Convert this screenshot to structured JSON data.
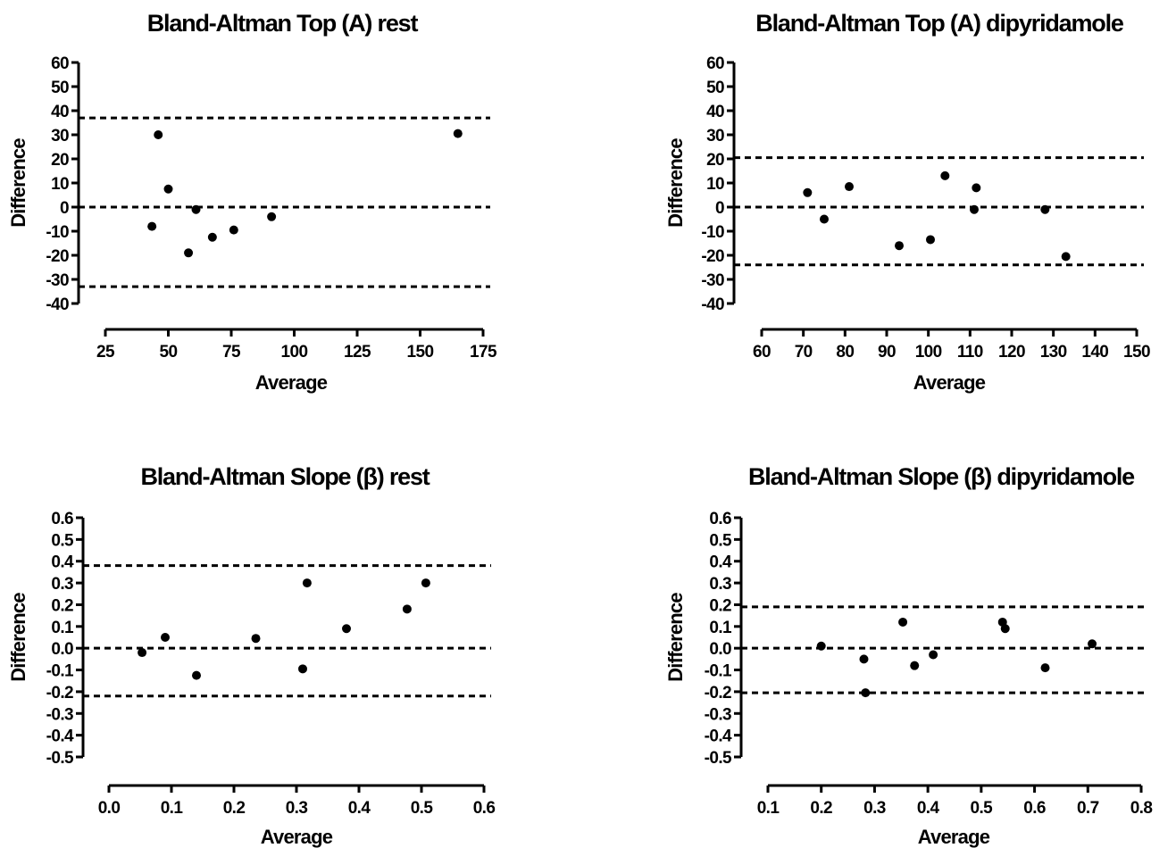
{
  "chart_data": [
    {
      "type": "scatter",
      "title": "Bland-Altman Top (A) rest",
      "xlabel": "Average",
      "ylabel": "Difference",
      "xlim": [
        25,
        175
      ],
      "ylim": [
        -40,
        60
      ],
      "xticks": [
        25,
        50,
        75,
        100,
        125,
        150,
        175
      ],
      "yticks": [
        60,
        50,
        40,
        30,
        20,
        10,
        0,
        -10,
        -20,
        -30,
        -40
      ],
      "xtick_labels": [
        "25",
        "50",
        "75",
        "100",
        "125",
        "150",
        "175"
      ],
      "ytick_labels": [
        "60",
        "50",
        "40",
        "30",
        "20",
        "10",
        "0",
        "-10",
        "-20",
        "-30",
        "-40"
      ],
      "reference_lines": [
        37,
        0,
        -33
      ],
      "points": [
        [
          43.5,
          -8
        ],
        [
          46,
          30
        ],
        [
          50,
          7.5
        ],
        [
          58,
          -19
        ],
        [
          61,
          -1
        ],
        [
          67.5,
          -12.5
        ],
        [
          76,
          -9.5
        ],
        [
          91,
          -4
        ],
        [
          165,
          30.5
        ]
      ]
    },
    {
      "type": "scatter",
      "title": "Bland-Altman Top (A) dipyridamole",
      "xlabel": "Average",
      "ylabel": "Difference",
      "xlim": [
        60,
        150
      ],
      "ylim": [
        -40,
        60
      ],
      "xticks": [
        60,
        70,
        80,
        90,
        100,
        110,
        120,
        130,
        140,
        150
      ],
      "yticks": [
        60,
        50,
        40,
        30,
        20,
        10,
        0,
        -10,
        -20,
        -30,
        -40
      ],
      "xtick_labels": [
        "60",
        "70",
        "80",
        "90",
        "100",
        "110",
        "120",
        "130",
        "140",
        "150"
      ],
      "ytick_labels": [
        "60",
        "50",
        "40",
        "30",
        "20",
        "10",
        "0",
        "-10",
        "-20",
        "-30",
        "-40"
      ],
      "reference_lines": [
        20.5,
        0,
        -24
      ],
      "points": [
        [
          71,
          6
        ],
        [
          75,
          -5
        ],
        [
          81,
          8.5
        ],
        [
          93,
          -16
        ],
        [
          100.5,
          -13.5
        ],
        [
          104,
          13
        ],
        [
          111,
          -1
        ],
        [
          111.5,
          8
        ],
        [
          128,
          -1
        ],
        [
          133,
          -20.5
        ]
      ]
    },
    {
      "type": "scatter",
      "title": "Bland-Altman  Slope (β) rest",
      "xlabel": "Average",
      "ylabel": "Difference",
      "xlim": [
        0.0,
        0.6
      ],
      "ylim": [
        -0.5,
        0.6
      ],
      "xticks": [
        0.0,
        0.1,
        0.2,
        0.3,
        0.4,
        0.5,
        0.6
      ],
      "yticks": [
        0.6,
        0.5,
        0.4,
        0.3,
        0.2,
        0.1,
        0.0,
        -0.1,
        -0.2,
        -0.3,
        -0.4,
        -0.5
      ],
      "xtick_labels": [
        "0.0",
        "0.1",
        "0.2",
        "0.3",
        "0.4",
        "0.5",
        "0.6"
      ],
      "ytick_labels": [
        "0.6",
        "0.5",
        "0.4",
        "0.3",
        "0.2",
        "0.1",
        "0.0",
        "-0.1",
        "-0.2",
        "-0.3",
        "-0.4",
        "-0.5"
      ],
      "reference_lines": [
        0.38,
        0.0,
        -0.22
      ],
      "points": [
        [
          0.053,
          -0.02
        ],
        [
          0.09,
          0.05
        ],
        [
          0.14,
          -0.125
        ],
        [
          0.235,
          0.045
        ],
        [
          0.31,
          -0.095
        ],
        [
          0.317,
          0.3
        ],
        [
          0.38,
          0.09
        ],
        [
          0.477,
          0.18
        ],
        [
          0.507,
          0.3
        ]
      ]
    },
    {
      "type": "scatter",
      "title": "Bland-Altman Slope (β) dipyridamole",
      "xlabel": "Average",
      "ylabel": "Difference",
      "xlim": [
        0.1,
        0.8
      ],
      "ylim": [
        -0.5,
        0.6
      ],
      "xticks": [
        0.1,
        0.2,
        0.3,
        0.4,
        0.5,
        0.6,
        0.7,
        0.8
      ],
      "yticks": [
        0.6,
        0.5,
        0.4,
        0.3,
        0.2,
        0.1,
        0.0,
        -0.1,
        -0.2,
        -0.3,
        -0.4,
        -0.5
      ],
      "xtick_labels": [
        "0.1",
        "0.2",
        "0.3",
        "0.4",
        "0.5",
        "0.6",
        "0.7",
        "0.8"
      ],
      "ytick_labels": [
        "0.6",
        "0.5",
        "0.4",
        "0.3",
        "0.2",
        "0.1",
        "0.0",
        "-0.1",
        "-0.2",
        "-0.3",
        "-0.4",
        "-0.5"
      ],
      "reference_lines": [
        0.19,
        0.0,
        -0.205
      ],
      "points": [
        [
          0.2,
          0.01
        ],
        [
          0.28,
          -0.05
        ],
        [
          0.283,
          -0.205
        ],
        [
          0.353,
          0.12
        ],
        [
          0.375,
          -0.08
        ],
        [
          0.41,
          -0.03
        ],
        [
          0.54,
          0.12
        ],
        [
          0.545,
          0.09
        ],
        [
          0.62,
          -0.09
        ],
        [
          0.708,
          0.02
        ]
      ]
    }
  ]
}
